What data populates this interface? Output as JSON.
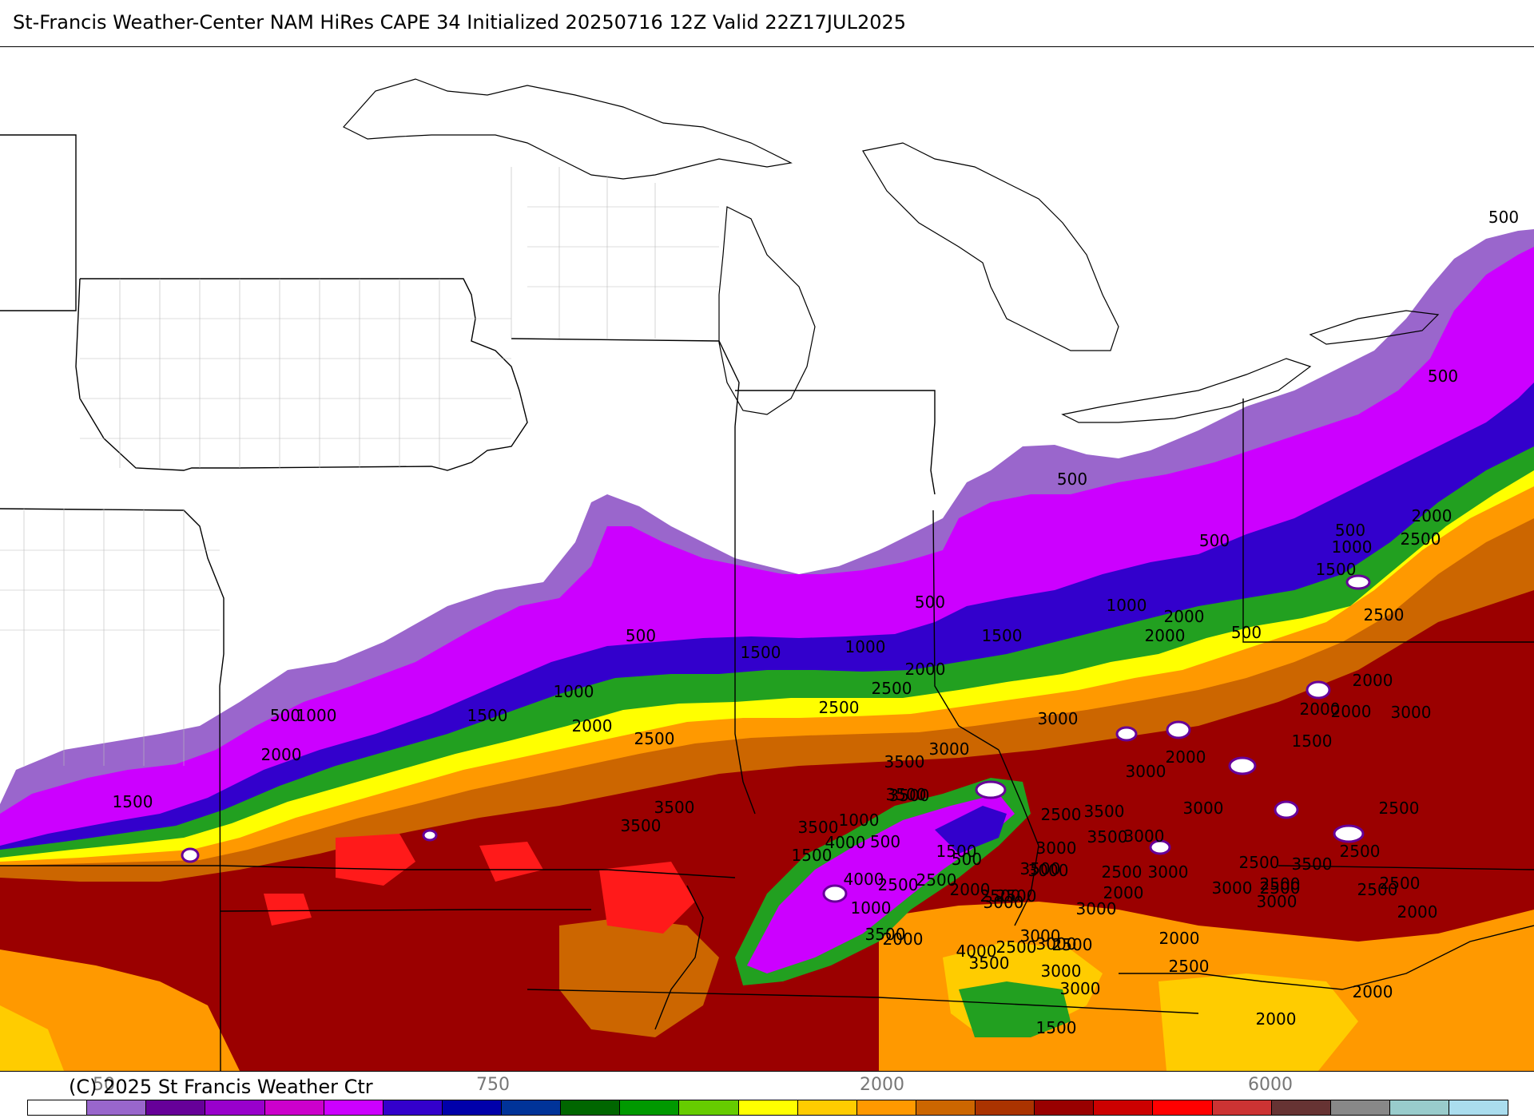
{
  "title": "St-Francis Weather-Center NAM HiRes CAPE  34 Initialized 20250716 12Z Valid 22Z17JUL2025",
  "copyright": "(C) 2025 St Francis Weather Ctr",
  "colorbar": {
    "colors": [
      "#ffffff",
      "#9966cc",
      "#660099",
      "#9900cc",
      "#cc00cc",
      "#cc00ff",
      "#3300cc",
      "#0000aa",
      "#003399",
      "#006600",
      "#009900",
      "#66cc00",
      "#ffff00",
      "#ffcc00",
      "#ff9900",
      "#cc6600",
      "#aa3300",
      "#990000",
      "#cc0000",
      "#ff0000",
      "#cc3333",
      "#663333",
      "#888888",
      "#99cccc",
      "#aaddee"
    ],
    "tick_labels": [
      "50",
      "750",
      "2000",
      "6000"
    ]
  },
  "contour_labels": [
    "500",
    "500",
    "500",
    "500",
    "500",
    "500",
    "500",
    "500",
    "500",
    "500",
    "500",
    "1000",
    "1000",
    "1000",
    "1000",
    "1000",
    "1000",
    "1000",
    "1500",
    "1500",
    "1500",
    "1500",
    "1500",
    "1500",
    "1500",
    "1500",
    "1500",
    "2000",
    "2000",
    "2000",
    "2000",
    "2000",
    "2000",
    "2000",
    "2000",
    "2000",
    "2000",
    "2000",
    "2000",
    "2000",
    "2000",
    "2000",
    "2000",
    "2000",
    "2500",
    "2500",
    "2500",
    "2500",
    "2500",
    "2500",
    "2500",
    "2500",
    "2500",
    "2500",
    "2500",
    "2500",
    "2500",
    "2500",
    "2500",
    "2500",
    "2500",
    "2500",
    "2500",
    "2500",
    "2500",
    "3000",
    "3000",
    "3000",
    "3000",
    "3000",
    "3000",
    "3000",
    "3000",
    "3000",
    "3000",
    "3000",
    "3000",
    "3000",
    "3000",
    "3000",
    "3000",
    "3000",
    "3500",
    "3500",
    "3500",
    "3500",
    "3500",
    "3500",
    "3500",
    "3500",
    "3500",
    "3500",
    "3500",
    "3500",
    "4000",
    "4000",
    "4000"
  ]
}
